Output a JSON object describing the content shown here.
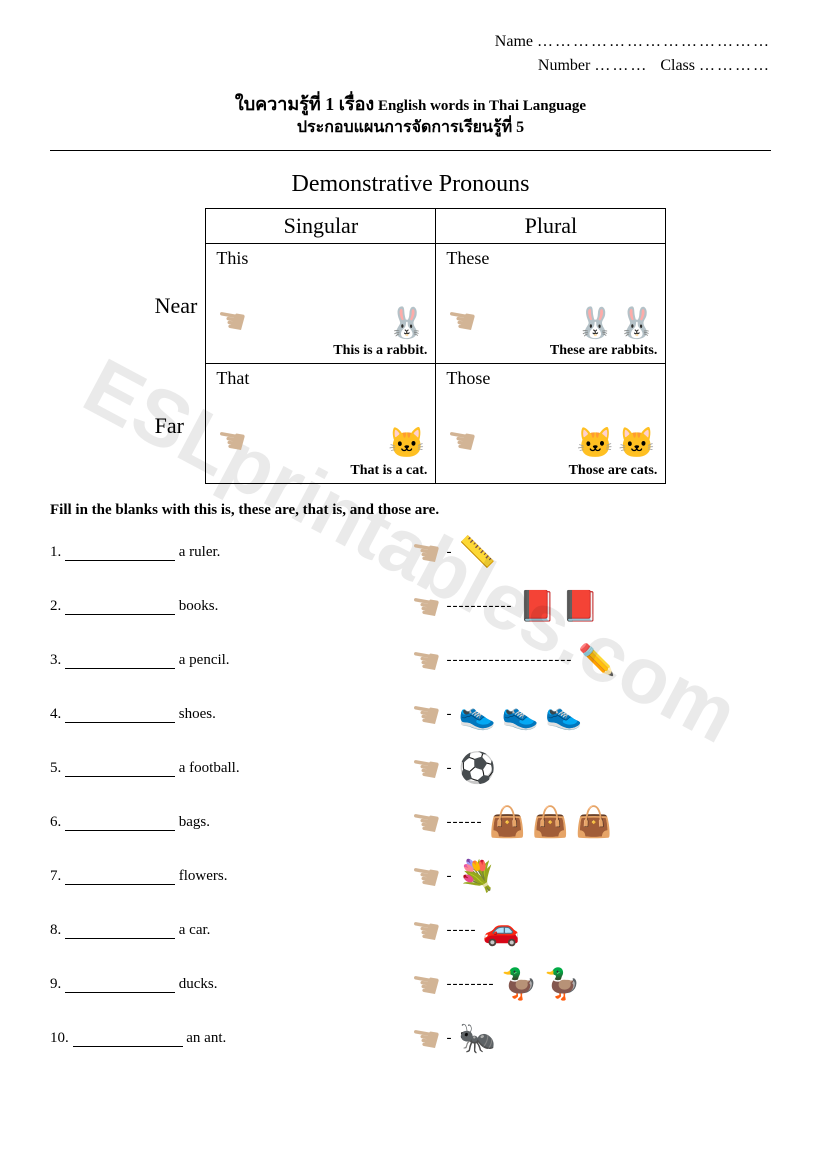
{
  "header": {
    "name_label": "Name",
    "number_label": "Number",
    "class_label": "Class",
    "dots_long": "…………………………………",
    "dots_short": "………",
    "dots_med": "…………"
  },
  "title": {
    "line1_thai_a": "ใบความรู้ที่ 1 เรื่อง",
    "line1_eng": " English words in Thai Language",
    "line2": "ประกอบแผนการจัดการเรียนรู้ที่ 5"
  },
  "section_title": "Demonstrative Pronouns",
  "columns": {
    "singular": "Singular",
    "plural": "Plural"
  },
  "rows": {
    "near": "Near",
    "far": "Far"
  },
  "cells": {
    "this": {
      "word": "This",
      "sentence": "This is a rabbit."
    },
    "these": {
      "word": "These",
      "sentence": "These are rabbits."
    },
    "that": {
      "word": "That",
      "sentence": "That is a cat."
    },
    "those": {
      "word": "Those",
      "sentence": "Those are cats."
    }
  },
  "animals": {
    "rabbit": "🐰",
    "cat": "🐱"
  },
  "instruction": "Fill in the blanks with this is, these are, that is, and those are.",
  "questions": [
    {
      "n": "1.",
      "after": " a ruler.",
      "dash": "-",
      "icons": [
        "📏"
      ]
    },
    {
      "n": "2.",
      "after": " books.",
      "dash": "-----------",
      "icons": [
        "📕",
        "📕"
      ]
    },
    {
      "n": "3.",
      "after": " a pencil.",
      "dash": "---------------------",
      "icons": [
        "✏️"
      ]
    },
    {
      "n": "4.",
      "after": " shoes.",
      "dash": "-",
      "icons": [
        "👟",
        "👟",
        "👟"
      ]
    },
    {
      "n": "5.",
      "after": " a football.",
      "dash": "-",
      "icons": [
        "⚽"
      ]
    },
    {
      "n": "6.",
      "after": " bags.",
      "dash": "------",
      "icons": [
        "👜",
        "👜",
        "👜"
      ]
    },
    {
      "n": "7.",
      "after": " flowers.",
      "dash": "-",
      "icons": [
        "💐"
      ]
    },
    {
      "n": "8.",
      "after": " a car.",
      "dash": "-----",
      "icons": [
        "🚗"
      ]
    },
    {
      "n": "9.",
      "after": " ducks.",
      "dash": "--------",
      "icons": [
        "🦆",
        "🦆"
      ]
    },
    {
      "n": "10.",
      "after": " an ant.",
      "dash": "-",
      "icons": [
        "🐜"
      ]
    }
  ],
  "watermark": "ESLprintables.com"
}
